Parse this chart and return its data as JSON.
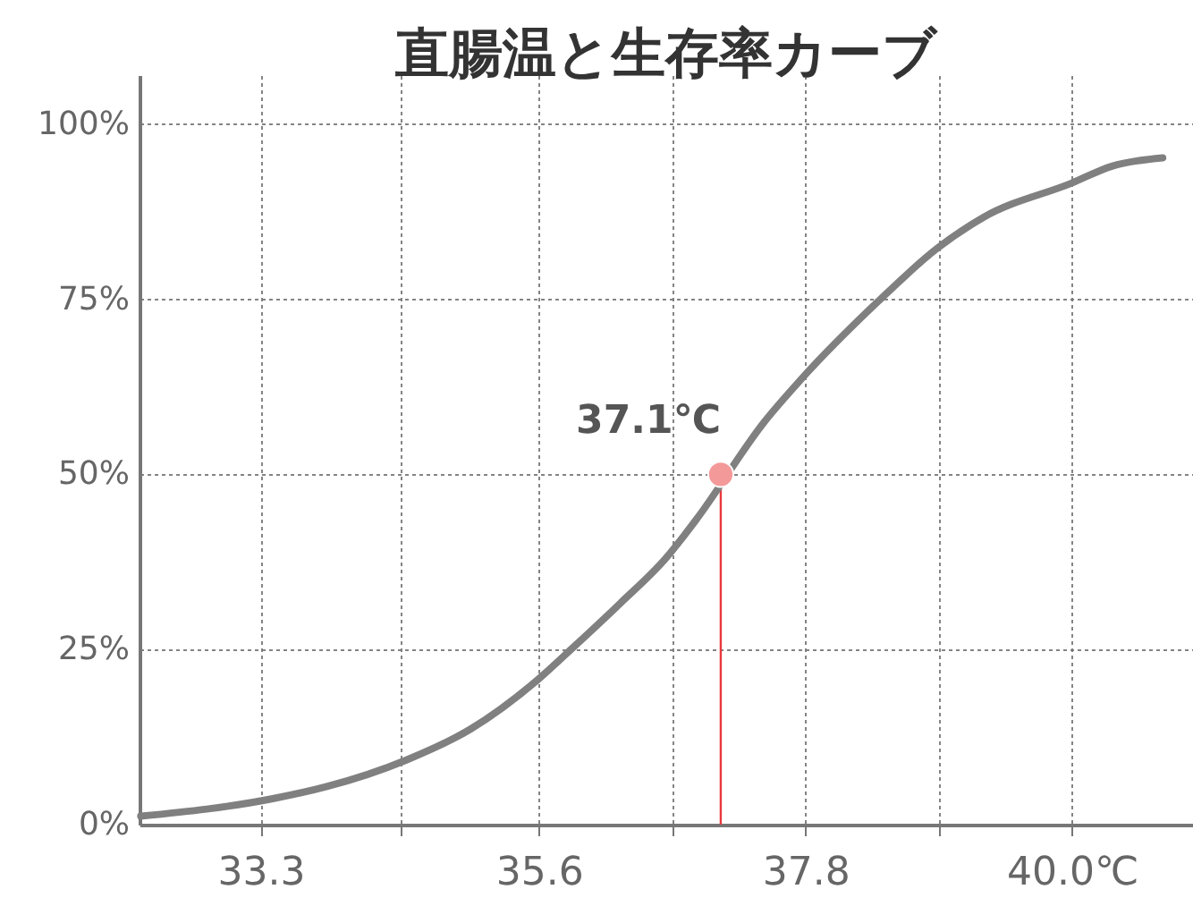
{
  "chart_data": {
    "type": "line",
    "title": "直腸温と生存率カーブ",
    "xlim": [
      32.3,
      41.0
    ],
    "xticks": [
      33.3,
      {
        "value": 34.45,
        "label": null
      },
      35.6,
      {
        "value": 36.7,
        "label": null
      },
      37.8,
      {
        "value": 38.9,
        "label": null
      },
      {
        "value": 40.0,
        "label": "40.0℃"
      }
    ],
    "ylim": [
      0,
      107
    ],
    "yticks": [
      {
        "value": 0,
        "label": "0%"
      },
      {
        "value": 25,
        "label": "25%"
      },
      {
        "value": 50,
        "label": "50%"
      },
      {
        "value": 75,
        "label": "75%"
      },
      {
        "value": 100,
        "label": "100%"
      }
    ],
    "grid": true,
    "series": [
      {
        "color": "#808080",
        "x": [
          32.31,
          33.4,
          33.84,
          34.5,
          35.03,
          35.59,
          35.9,
          36.27,
          36.65,
          36.9,
          37.46,
          37.76,
          38.4,
          38.89,
          39.27,
          40.0,
          40.33,
          40.75
        ],
        "values": [
          1.2,
          3.7,
          5.4,
          9.2,
          13.6,
          20.7,
          25.6,
          31.6,
          38.1,
          43.6,
          57.5,
          63.5,
          74.7,
          82.3,
          86.7,
          91.6,
          94.0,
          95.2
        ]
      },
      {
        "type": "scatter",
        "color": "#f4999a",
        "x": [
          37.1
        ],
        "values": [
          50
        ]
      }
    ],
    "ref_lines": [
      {
        "axis": "x",
        "value": 37.1,
        "color": "#e8383d"
      }
    ],
    "annotations": [
      {
        "text": "37.1℃",
        "x": 37.1,
        "y": 50
      }
    ]
  }
}
